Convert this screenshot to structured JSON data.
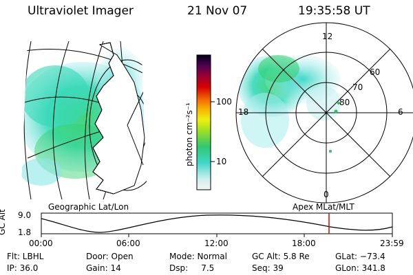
{
  "header": {
    "instrument": "Ultraviolet Imager",
    "date": "21 Nov 07",
    "time": "19:35:58 UT"
  },
  "left_map": {
    "label": "Geographic Lat/Lon"
  },
  "colorbar": {
    "unit_label": "photon cm⁻²s⁻¹",
    "ticks": [
      "100",
      "10"
    ]
  },
  "polar_plot": {
    "label": "Apex MLat/MLT",
    "mlt_labels": {
      "top": "12",
      "left": "18",
      "right": "6",
      "bottom": "0"
    },
    "lat_labels": [
      "60",
      "70",
      "80"
    ]
  },
  "altitude_plot": {
    "ylabel": "GC Alt",
    "y_ticks": [
      "9.0",
      "1.8"
    ],
    "x_ticks": [
      "00:00",
      "06:00",
      "12:00",
      "18:00",
      "23:59"
    ],
    "marker_color": "#e00000"
  },
  "info": {
    "flt": "Flt: LBHL",
    "ip": "IP: 36.0",
    "door": "Door: Open",
    "gain": "Gain: 14",
    "mode": "Mode: Normal",
    "dsp": "Dsp:     7.5",
    "gc_alt": "GC Alt: 5.8 Re",
    "seq": "Seq: 39",
    "glat": "GLat: −73.4",
    "glon": "GLon: 341.8"
  }
}
